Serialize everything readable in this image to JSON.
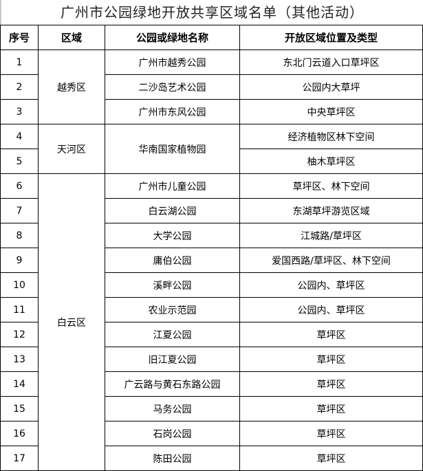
{
  "title": "广州市公园绿地开放共享区域名单（其他活动）",
  "headers": [
    "序号",
    "区域",
    "公园或绿地名称",
    "开放区域位置及类型"
  ],
  "rows": [
    {
      "no": "1",
      "district": "越秀区",
      "park": "广州市越秀公园",
      "area": "东北门云道入口草坪区"
    },
    {
      "no": "2",
      "park": "二沙岛艺术公园",
      "area": "公园内大草坪"
    },
    {
      "no": "3",
      "park": "广州市东风公园",
      "area": "中央草坪区"
    },
    {
      "no": "4",
      "district": "天河区",
      "park": "华南国家植物园",
      "area": "经济植物区林下空间"
    },
    {
      "no": "5",
      "area": "柚木草坪区"
    },
    {
      "no": "6",
      "district": "白云区",
      "park": "广州市儿童公园",
      "area": "草坪区、林下空间"
    },
    {
      "no": "7",
      "park": "白云湖公园",
      "area": "东湖草坪游览区域"
    },
    {
      "no": "8",
      "park": "大学公园",
      "area": "江城路/草坪区"
    },
    {
      "no": "9",
      "park": "庸伯公园",
      "area": "爱国西路/草坪区、林下空间"
    },
    {
      "no": "10",
      "park": "溪畔公园",
      "area": "公园内、草坪区"
    },
    {
      "no": "11",
      "park": "农业示范园",
      "area": "公园内、草坪区"
    },
    {
      "no": "12",
      "park": "江夏公园",
      "area": "草坪区"
    },
    {
      "no": "13",
      "park": "旧江夏公园",
      "area": "草坪区"
    },
    {
      "no": "14",
      "park": "广云路与黄石东路公园",
      "area": "草坪区"
    },
    {
      "no": "15",
      "park": "马务公园",
      "area": "草坪区"
    },
    {
      "no": "16",
      "park": "石岗公园",
      "area": "草坪区"
    },
    {
      "no": "17",
      "park": "陈田公园",
      "area": "草坪区"
    }
  ]
}
